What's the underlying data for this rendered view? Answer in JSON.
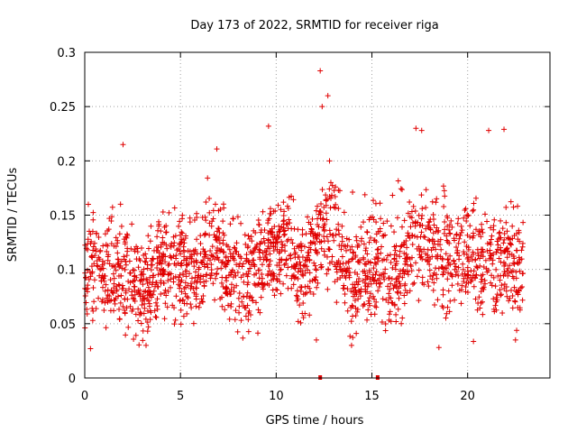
{
  "chart_data": {
    "type": "scatter",
    "title": "Day 173 of 2022, SRMTID for receiver riga",
    "xlabel": "GPS time / hours",
    "ylabel": "SRMTID / TECUs",
    "xlim": [
      0,
      24.3
    ],
    "ylim": [
      0,
      0.3
    ],
    "x_ticks": [
      0,
      5,
      10,
      15,
      20
    ],
    "x_tick_labels": [
      "0",
      "5",
      "10",
      "15",
      "20"
    ],
    "y_ticks": [
      0,
      0.05,
      0.1,
      0.15,
      0.2,
      0.25,
      0.3
    ],
    "y_tick_labels": [
      "0",
      "0.05",
      "0.1",
      "0.15",
      "0.2",
      "0.25",
      "0.3"
    ],
    "grid": true,
    "legend": "none",
    "marker": "plus",
    "color": "#e00000",
    "data_note": "Dense point cloud (~2000 samples) summarized as a median level per half-hour plus notable outliers; individual samples are regenerated around this profile.",
    "profile_hours": [
      0,
      0.5,
      1,
      1.5,
      2,
      2.5,
      3,
      3.5,
      4,
      4.5,
      5,
      5.5,
      6,
      6.5,
      7,
      7.5,
      8,
      8.5,
      9,
      9.5,
      10,
      10.5,
      11,
      11.5,
      12,
      12.5,
      13,
      13.5,
      14,
      14.5,
      15,
      15.5,
      16,
      16.5,
      17,
      17.5,
      18,
      18.5,
      19,
      19.5,
      20,
      20.5,
      21,
      21.5,
      22,
      22.5
    ],
    "profile_median": [
      0.1,
      0.11,
      0.09,
      0.09,
      0.1,
      0.09,
      0.08,
      0.09,
      0.1,
      0.1,
      0.1,
      0.09,
      0.1,
      0.12,
      0.11,
      0.1,
      0.1,
      0.09,
      0.1,
      0.12,
      0.11,
      0.12,
      0.11,
      0.09,
      0.12,
      0.14,
      0.14,
      0.1,
      0.08,
      0.09,
      0.1,
      0.11,
      0.09,
      0.1,
      0.12,
      0.13,
      0.12,
      0.11,
      0.1,
      0.11,
      0.11,
      0.1,
      0.11,
      0.1,
      0.11,
      0.1
    ],
    "outliers": [
      {
        "x": 0.3,
        "y": 0.027
      },
      {
        "x": 2.0,
        "y": 0.215
      },
      {
        "x": 6.9,
        "y": 0.211
      },
      {
        "x": 9.6,
        "y": 0.232
      },
      {
        "x": 12.3,
        "y": 0.283
      },
      {
        "x": 12.7,
        "y": 0.26
      },
      {
        "x": 12.4,
        "y": 0.25
      },
      {
        "x": 12.1,
        "y": 0.035
      },
      {
        "x": 17.3,
        "y": 0.23
      },
      {
        "x": 17.6,
        "y": 0.228
      },
      {
        "x": 21.1,
        "y": 0.228
      },
      {
        "x": 21.9,
        "y": 0.229
      },
      {
        "x": 18.5,
        "y": 0.028
      },
      {
        "x": 22.5,
        "y": 0.035
      }
    ],
    "zero_points": [
      {
        "x": 12.3,
        "y": 0
      },
      {
        "x": 15.3,
        "y": 0
      }
    ]
  }
}
